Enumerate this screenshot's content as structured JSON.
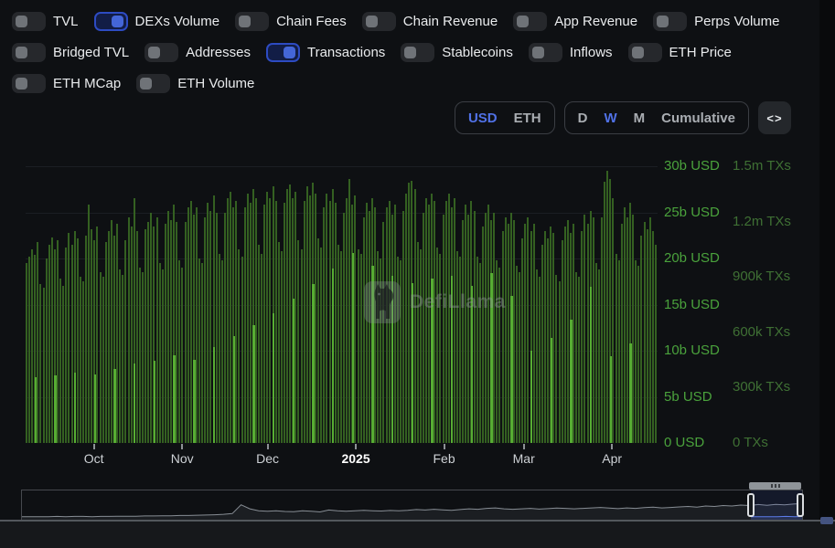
{
  "toggles": [
    {
      "label": "TVL",
      "on": false
    },
    {
      "label": "DEXs Volume",
      "on": true
    },
    {
      "label": "Chain Fees",
      "on": false
    },
    {
      "label": "Chain Revenue",
      "on": false
    },
    {
      "label": "App Revenue",
      "on": false
    },
    {
      "label": "Perps Volume",
      "on": false
    },
    {
      "label": "Bridged TVL",
      "on": false
    },
    {
      "label": "Addresses",
      "on": false
    },
    {
      "label": "Transactions",
      "on": true
    },
    {
      "label": "Stablecoins",
      "on": false
    },
    {
      "label": "Inflows",
      "on": false
    },
    {
      "label": "ETH Price",
      "on": false
    },
    {
      "label": "ETH MCap",
      "on": false
    },
    {
      "label": "ETH Volume",
      "on": false
    }
  ],
  "controls": {
    "currency": [
      {
        "label": "USD",
        "active": true
      },
      {
        "label": "ETH",
        "active": false
      }
    ],
    "interval": [
      {
        "label": "D",
        "active": false
      },
      {
        "label": "W",
        "active": true
      },
      {
        "label": "M",
        "active": false
      },
      {
        "label": "Cumulative",
        "active": false
      }
    ],
    "embed_label": "<>"
  },
  "watermark": {
    "text": "DefiLlama"
  },
  "colors": {
    "accent_blue": "#4466d8",
    "active_text_blue": "#5071e6",
    "usd_axis_green": "#4aa23c",
    "tx_axis_green": "#3f7034",
    "volume_bar_green": "#346021",
    "tx_bar_green": "#57ad33",
    "background": "#0e1013"
  },
  "chart_data": {
    "type": "bar",
    "title": "",
    "legend_position": "none",
    "grid": true,
    "x_range": "Sep 2024 - Apr 2025",
    "total_days": 223,
    "usd_axis": {
      "labels": [
        "30b USD",
        "25b USD",
        "20b USD",
        "15b USD",
        "10b USD",
        "5b USD",
        "0 USD"
      ],
      "values": [
        30,
        25,
        20,
        15,
        10,
        5,
        0
      ],
      "max": 30,
      "unit": "billion USD"
    },
    "tx_axis": {
      "labels": [
        "1.5m TXs",
        "1.2m TXs",
        "900k TXs",
        "600k TXs",
        "300k TXs",
        "0 TXs"
      ],
      "values": [
        1500,
        1200,
        900,
        600,
        300,
        0
      ],
      "max": 1500,
      "unit": "thousand TXs"
    },
    "x_ticks": {
      "labels": [
        "Oct",
        "Nov",
        "Dec",
        "2025",
        "Feb",
        "Mar",
        "Apr"
      ],
      "day_index": [
        24,
        55,
        85,
        116,
        147,
        175,
        206
      ],
      "bold": [
        false,
        false,
        false,
        true,
        false,
        false,
        false
      ]
    },
    "series": [
      {
        "name": "DEXs Volume",
        "axis": "usd",
        "cadence": "daily",
        "values": [
          19.5,
          20.2,
          21.0,
          20.4,
          21.8,
          17.2,
          16.8,
          20.0,
          21.5,
          22.3,
          21.0,
          22.0,
          17.8,
          17.0,
          21.2,
          22.8,
          21.5,
          23.0,
          22.2,
          18.0,
          17.5,
          22.5,
          25.8,
          23.2,
          22.0,
          23.5,
          18.5,
          18.0,
          21.8,
          23.0,
          24.2,
          22.5,
          23.8,
          18.8,
          18.2,
          22.0,
          24.5,
          23.5,
          26.5,
          23.0,
          19.0,
          18.5,
          23.2,
          24.0,
          25.0,
          23.5,
          24.5,
          19.5,
          18.8,
          23.8,
          25.2,
          24.2,
          25.8,
          24.0,
          19.8,
          19.0,
          24.0,
          25.5,
          26.2,
          24.8,
          25.5,
          20.0,
          19.5,
          24.5,
          26.0,
          25.2,
          26.8,
          25.0,
          20.5,
          19.8,
          25.0,
          26.5,
          27.2,
          25.5,
          26.2,
          21.0,
          20.2,
          25.5,
          27.0,
          26.0,
          27.5,
          26.5,
          21.5,
          20.5,
          25.8,
          27.2,
          26.5,
          27.8,
          26.2,
          21.8,
          20.8,
          26.0,
          27.5,
          28.0,
          26.5,
          27.2,
          22.0,
          21.0,
          26.2,
          27.8,
          26.8,
          28.2,
          27.0,
          22.2,
          21.2,
          25.5,
          27.0,
          26.2,
          27.5,
          26.0,
          21.5,
          20.8,
          25.0,
          26.5,
          28.6,
          25.8,
          26.8,
          21.0,
          20.5,
          24.5,
          26.0,
          25.2,
          26.5,
          25.5,
          20.8,
          20.0,
          24.0,
          25.5,
          26.2,
          24.8,
          25.8,
          20.2,
          19.8,
          25.2,
          27.0,
          28.2,
          28.4,
          27.5,
          21.8,
          21.0,
          25.0,
          26.5,
          25.8,
          27.0,
          26.2,
          21.2,
          20.5,
          24.8,
          26.2,
          27.0,
          25.5,
          26.5,
          20.8,
          20.2,
          24.2,
          25.8,
          24.8,
          26.2,
          25.2,
          20.2,
          19.5,
          23.5,
          25.0,
          25.8,
          24.2,
          25.0,
          19.8,
          19.0,
          23.0,
          24.5,
          23.8,
          25.0,
          24.2,
          19.2,
          18.5,
          22.2,
          23.8,
          24.5,
          23.0,
          23.8,
          18.8,
          18.0,
          21.5,
          23.0,
          22.2,
          23.5,
          22.8,
          18.2,
          17.5,
          22.0,
          23.5,
          24.2,
          22.8,
          23.8,
          18.5,
          18.0,
          23.0,
          24.8,
          23.8,
          25.2,
          24.5,
          19.5,
          18.8,
          24.5,
          28.3,
          29.5,
          28.6,
          26.5,
          20.5,
          19.8,
          23.8,
          25.5,
          24.5,
          26.0,
          24.8,
          19.8,
          19.2,
          22.5,
          24.0,
          23.2,
          24.5,
          23.0,
          21.5
        ]
      },
      {
        "name": "Transactions",
        "axis": "txs",
        "cadence": "weekly",
        "week_day_offset": 3,
        "values": [
          355,
          368,
          380,
          372,
          400,
          430,
          448,
          476,
          452,
          520,
          580,
          640,
          704,
          780,
          860,
          947,
          1030,
          960,
          905,
          868,
          890,
          905,
          852,
          922,
          795,
          500,
          572,
          668,
          845,
          472,
          540
        ]
      }
    ],
    "brush_profile": [
      5,
      5,
      5,
      5,
      6,
      5,
      6,
      6,
      5,
      6,
      6,
      7,
      7,
      7,
      8,
      8,
      9,
      9,
      10,
      10,
      11,
      12,
      13,
      15,
      18,
      55,
      38,
      30,
      28,
      30,
      27,
      26,
      30,
      28,
      25,
      33,
      30,
      28,
      30,
      32,
      30,
      29,
      31,
      30,
      32,
      35,
      33,
      36,
      34,
      32,
      35,
      38,
      36,
      40,
      42,
      38,
      36,
      38,
      40,
      37,
      39,
      41,
      40,
      38,
      40,
      42,
      44,
      41,
      39,
      42,
      40,
      43,
      45,
      42,
      44,
      46,
      48,
      45,
      50,
      48,
      52,
      50,
      54,
      52,
      56,
      53,
      57,
      55,
      58,
      60
    ],
    "brush_selection_start_frac": 0.932
  }
}
